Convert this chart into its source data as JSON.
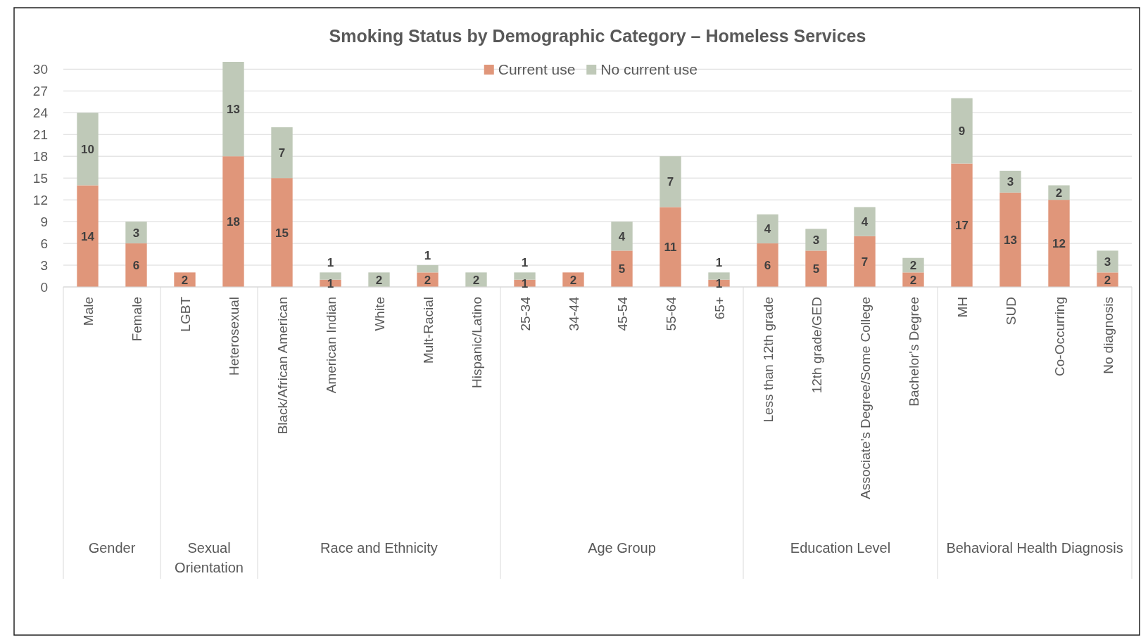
{
  "chart_data": {
    "type": "bar",
    "title": "Smoking Status by Demographic Category – Homeless Services",
    "stacked": true,
    "categories": [
      "Male",
      "Female",
      "LGBT",
      "Heterosexual",
      "Black/African American",
      "American Indian",
      "White",
      "Mult-Racial",
      "Hispanic/Latino",
      "25-34",
      "34-44",
      "45-54",
      "55-64",
      "65+",
      "Less than 12th grade",
      "12th grade/GED",
      "Associate's Degree/Some College",
      "Bachelor's Degree",
      "MH",
      "SUD",
      "Co-Occurring",
      "No diagnosis"
    ],
    "series": [
      {
        "name": "Current use",
        "color": "#e0967a",
        "values": [
          14,
          6,
          2,
          18,
          15,
          1,
          0,
          2,
          0,
          1,
          2,
          5,
          11,
          1,
          6,
          5,
          7,
          2,
          17,
          13,
          12,
          2
        ],
        "value_labels": [
          "14",
          "6",
          "2",
          "18",
          "15",
          "1",
          null,
          "2",
          null,
          "1",
          "2",
          "5",
          "11",
          "1",
          "6",
          "5",
          "7",
          "2",
          "17",
          "13",
          "12",
          "2"
        ]
      },
      {
        "name": "No current use",
        "color": "#bfc9b8",
        "values": [
          10,
          3,
          0,
          13,
          7,
          1,
          2,
          1,
          2,
          1,
          0,
          4,
          7,
          1,
          4,
          3,
          4,
          2,
          9,
          3,
          2,
          3
        ],
        "value_labels": [
          "10",
          "3",
          null,
          "13",
          "7",
          "1",
          "2",
          "1",
          "2",
          "1",
          null,
          "4",
          "7",
          "1",
          "4",
          "3",
          "4",
          "2",
          "9",
          "3",
          "2",
          "3"
        ]
      }
    ],
    "ylim": [
      0,
      31
    ],
    "yticks": [
      0,
      3,
      6,
      9,
      12,
      15,
      18,
      21,
      24,
      27,
      30
    ],
    "grid": "y",
    "legend": "top",
    "annotations": [
      "Gender",
      "Sexual Orientation",
      "Race and Ethnicity",
      "Age Group",
      "Education Level",
      "Behavioral Health Diagnosis"
    ]
  }
}
